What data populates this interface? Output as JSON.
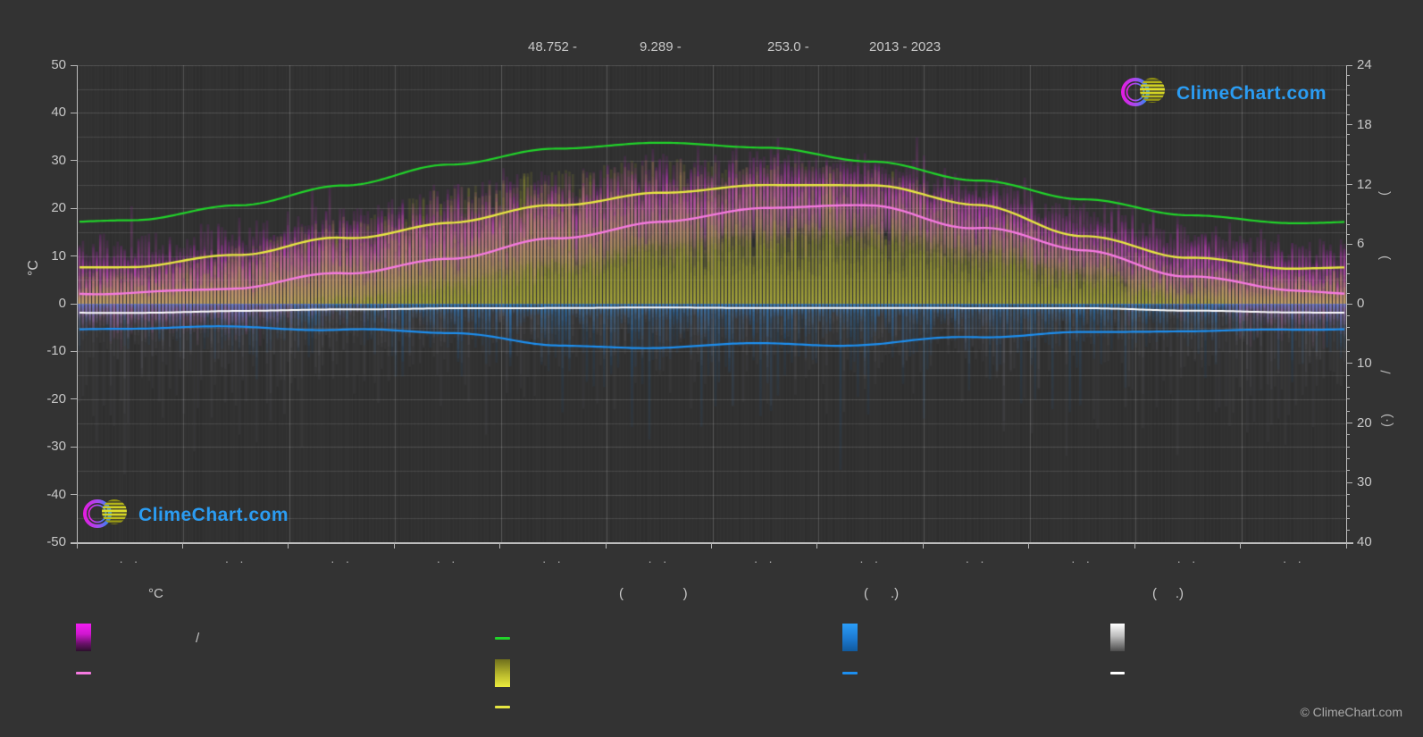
{
  "page": {
    "background": "#333333"
  },
  "header": {
    "fragments": [
      "48.752 -",
      "9.289 -",
      "253.0 -",
      "2013 - 2023"
    ]
  },
  "branding": {
    "logo_text": "ClimeChart.com",
    "logo_text_color": "#2b9cf2",
    "copyright": "© ClimeChart.com"
  },
  "axes": {
    "left_unit_label": "°C",
    "left_ticks": [
      50,
      40,
      30,
      20,
      10,
      0,
      -10,
      -20,
      -30,
      -40,
      -50
    ],
    "right_hour_ticks": [
      24,
      18,
      12,
      6,
      0
    ],
    "right_mm_ticks": [
      10,
      20,
      30,
      40
    ],
    "right_rotated_fragments": [
      ")",
      "(",
      "/",
      "(·)"
    ],
    "month_labels": [
      "· ·",
      "· ·",
      "· ·",
      "· ·",
      "· ·",
      "· ·",
      "· ·",
      "· ·",
      "· ·",
      "· ·",
      "· ·",
      "· ·"
    ]
  },
  "legend": {
    "temp_header": "°C",
    "temp_bar_label": "/",
    "sun_header": "(                )",
    "rain_header": "(      .)",
    "snow_header": "(     .)"
  },
  "chart_data": {
    "type": "area",
    "title": "Climate chart 48.752N 9.289E, 253.0 m, 2013 - 2023 (daily bars with monthly mean lines)",
    "x": "months 1-12 (tick labels unreadable dot glyphs)",
    "celsius_axis": {
      "label": "°C",
      "range": [
        -50,
        50
      ],
      "gridline_step": 5
    },
    "hours_axis": {
      "range": [
        0,
        24
      ],
      "mapped_to_celsius": [
        0,
        50
      ]
    },
    "mm_axis": {
      "range": [
        0,
        40
      ],
      "mapped_to_celsius": [
        0,
        -50
      ],
      "inverted": true
    },
    "series": [
      {
        "name": "daylight-hours-line",
        "color": "#21d42a",
        "axis": "hours",
        "values": [
          8.4,
          9.9,
          11.9,
          14.0,
          15.6,
          16.2,
          15.7,
          14.3,
          12.4,
          10.5,
          8.9,
          8.1
        ]
      },
      {
        "name": "temp-max-line",
        "color": "#e6e642",
        "axis": "celsius",
        "values": [
          7.5,
          9.5,
          13.8,
          17.0,
          20.3,
          23.6,
          25.0,
          24.7,
          20.3,
          14.6,
          9.7,
          7.3
        ]
      },
      {
        "name": "temp-mean-line",
        "color": "#f57ae0",
        "axis": "celsius",
        "values": [
          2.4,
          3.0,
          6.3,
          9.6,
          13.5,
          17.0,
          20.2,
          20.5,
          16.2,
          11.3,
          6.1,
          3.0
        ]
      },
      {
        "name": "rain-line",
        "color": "#1d8ff0",
        "axis": "mm_down",
        "values": [
          4.2,
          4.0,
          4.3,
          5.0,
          6.6,
          7.1,
          6.6,
          6.8,
          5.6,
          5.0,
          4.8,
          4.5
        ]
      },
      {
        "name": "snow-line",
        "color": "#ffffff",
        "axis": "mm_down",
        "values": [
          1.5,
          1.3,
          1.0,
          0.8,
          0.7,
          0.7,
          0.7,
          0.7,
          0.7,
          0.8,
          1.1,
          1.5
        ]
      }
    ],
    "daily_bars": [
      {
        "name": "temp-range-bars",
        "color": "#e833e8",
        "axis": "celsius",
        "monthly_mean_max": [
          7.5,
          9.5,
          13.8,
          17.0,
          20.3,
          23.6,
          25.0,
          24.7,
          20.3,
          14.6,
          9.7,
          7.3
        ],
        "monthly_mean_min": [
          -1.0,
          -0.5,
          3.0,
          6.5,
          10.5,
          14.0,
          17.0,
          17.3,
          13.0,
          8.5,
          3.0,
          -0.5
        ]
      },
      {
        "name": "sunshine-bars",
        "color": "#c8c83c",
        "axis": "hours",
        "monthly_mean_hours": [
          2.0,
          3.1,
          4.6,
          6.2,
          7.1,
          7.7,
          7.9,
          7.2,
          5.5,
          3.6,
          2.1,
          1.7
        ]
      },
      {
        "name": "rain-bars",
        "color": "#1d82dc",
        "axis": "mm_down",
        "monthly_mean_mm": [
          4.2,
          4.0,
          4.3,
          5.0,
          6.6,
          7.1,
          6.6,
          6.8,
          5.6,
          5.0,
          4.8,
          4.5
        ]
      },
      {
        "name": "snow-gray-bars",
        "color": "#b4b4c0",
        "axis": "mm_down",
        "monthly_mean_mm": [
          1.5,
          1.3,
          1.0,
          0.8,
          0.7,
          0.7,
          0.7,
          0.7,
          0.7,
          0.8,
          1.1,
          1.5
        ]
      }
    ]
  }
}
